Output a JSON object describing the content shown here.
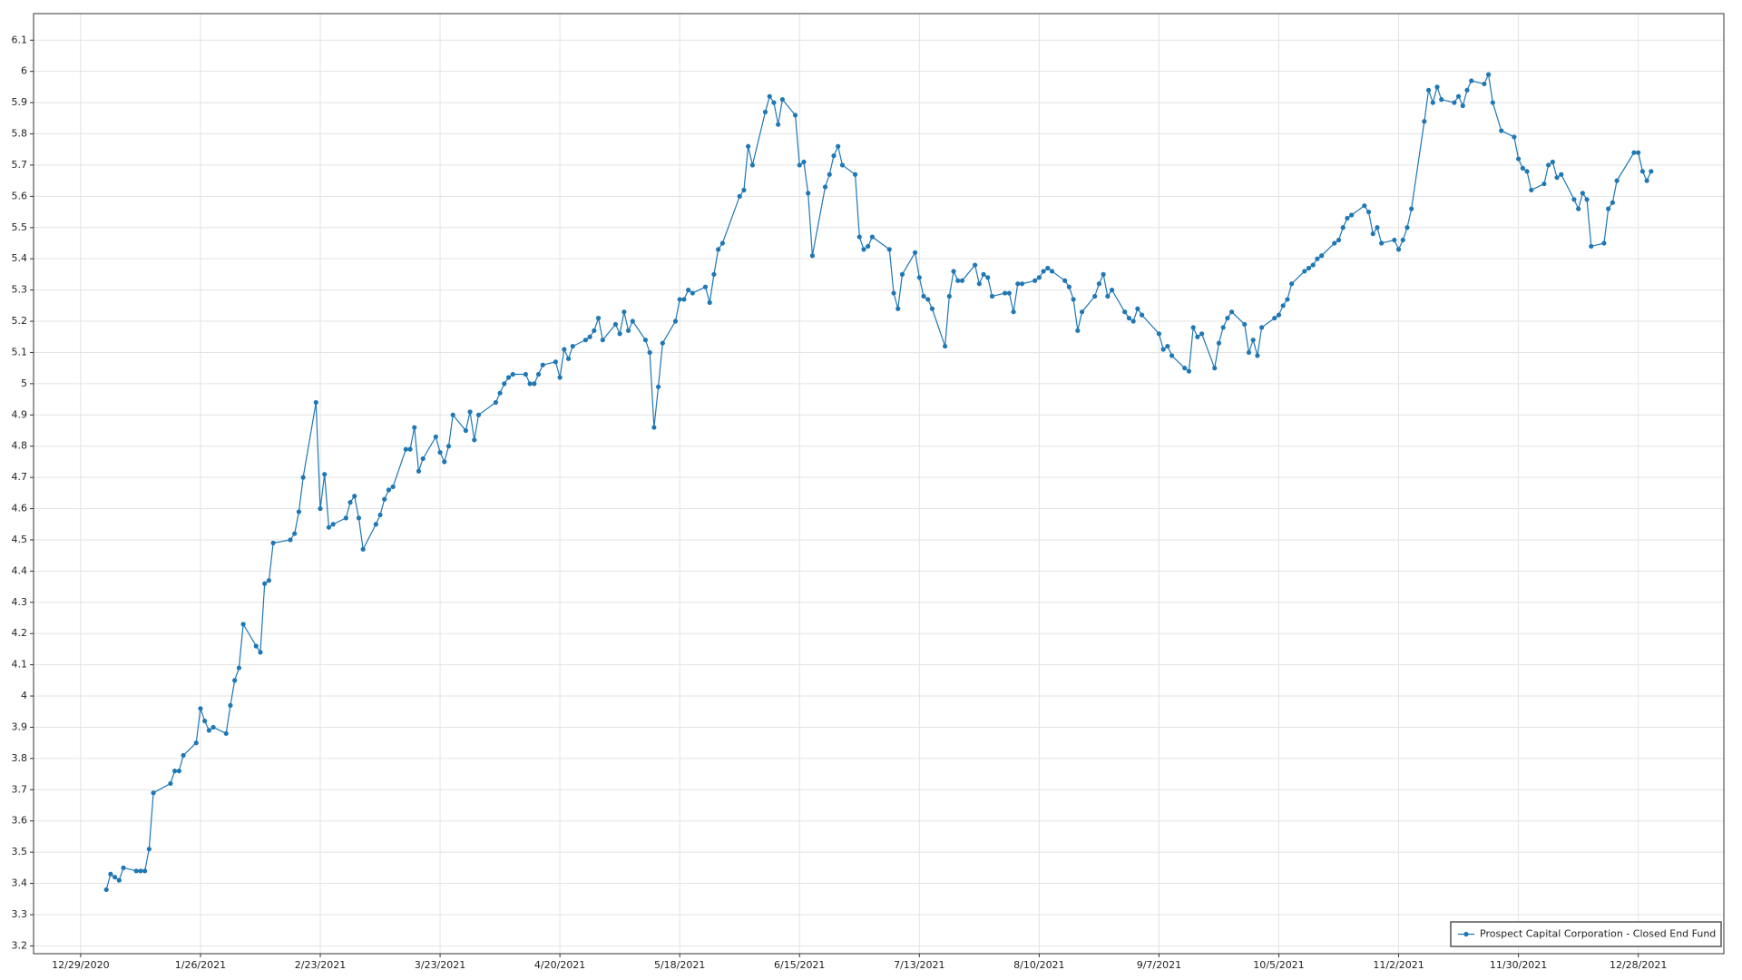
{
  "chart_data": {
    "type": "line",
    "x": [
      "1/4/2021",
      "1/5/2021",
      "1/6/2021",
      "1/7/2021",
      "1/8/2021",
      "1/11/2021",
      "1/12/2021",
      "1/13/2021",
      "1/14/2021",
      "1/15/2021",
      "1/19/2021",
      "1/20/2021",
      "1/21/2021",
      "1/22/2021",
      "1/25/2021",
      "1/26/2021",
      "1/27/2021",
      "1/28/2021",
      "1/29/2021",
      "2/1/2021",
      "2/2/2021",
      "2/3/2021",
      "2/4/2021",
      "2/5/2021",
      "2/8/2021",
      "2/9/2021",
      "2/10/2021",
      "2/11/2021",
      "2/12/2021",
      "2/16/2021",
      "2/17/2021",
      "2/18/2021",
      "2/19/2021",
      "2/22/2021",
      "2/23/2021",
      "2/24/2021",
      "2/25/2021",
      "2/26/2021",
      "3/1/2021",
      "3/2/2021",
      "3/3/2021",
      "3/4/2021",
      "3/5/2021",
      "3/8/2021",
      "3/9/2021",
      "3/10/2021",
      "3/11/2021",
      "3/12/2021",
      "3/15/2021",
      "3/16/2021",
      "3/17/2021",
      "3/18/2021",
      "3/19/2021",
      "3/22/2021",
      "3/23/2021",
      "3/24/2021",
      "3/25/2021",
      "3/26/2021",
      "3/29/2021",
      "3/30/2021",
      "3/31/2021",
      "4/1/2021",
      "4/5/2021",
      "4/6/2021",
      "4/7/2021",
      "4/8/2021",
      "4/9/2021",
      "4/12/2021",
      "4/13/2021",
      "4/14/2021",
      "4/15/2021",
      "4/16/2021",
      "4/19/2021",
      "4/20/2021",
      "4/21/2021",
      "4/22/2021",
      "4/23/2021",
      "4/26/2021",
      "4/27/2021",
      "4/28/2021",
      "4/29/2021",
      "4/30/2021",
      "5/3/2021",
      "5/4/2021",
      "5/5/2021",
      "5/6/2021",
      "5/7/2021",
      "5/10/2021",
      "5/11/2021",
      "5/12/2021",
      "5/13/2021",
      "5/14/2021",
      "5/17/2021",
      "5/18/2021",
      "5/19/2021",
      "5/20/2021",
      "5/21/2021",
      "5/24/2021",
      "5/25/2021",
      "5/26/2021",
      "5/27/2021",
      "5/28/2021",
      "6/1/2021",
      "6/2/2021",
      "6/3/2021",
      "6/4/2021",
      "6/7/2021",
      "6/8/2021",
      "6/9/2021",
      "6/10/2021",
      "6/11/2021",
      "6/14/2021",
      "6/15/2021",
      "6/16/2021",
      "6/17/2021",
      "6/18/2021",
      "6/21/2021",
      "6/22/2021",
      "6/23/2021",
      "6/24/2021",
      "6/25/2021",
      "6/28/2021",
      "6/29/2021",
      "6/30/2021",
      "7/1/2021",
      "7/2/2021",
      "7/6/2021",
      "7/7/2021",
      "7/8/2021",
      "7/9/2021",
      "7/12/2021",
      "7/13/2021",
      "7/14/2021",
      "7/15/2021",
      "7/16/2021",
      "7/19/2021",
      "7/20/2021",
      "7/21/2021",
      "7/22/2021",
      "7/23/2021",
      "7/26/2021",
      "7/27/2021",
      "7/28/2021",
      "7/29/2021",
      "7/30/2021",
      "8/2/2021",
      "8/3/2021",
      "8/4/2021",
      "8/5/2021",
      "8/6/2021",
      "8/9/2021",
      "8/10/2021",
      "8/11/2021",
      "8/12/2021",
      "8/13/2021",
      "8/16/2021",
      "8/17/2021",
      "8/18/2021",
      "8/19/2021",
      "8/20/2021",
      "8/23/2021",
      "8/24/2021",
      "8/25/2021",
      "8/26/2021",
      "8/27/2021",
      "8/30/2021",
      "8/31/2021",
      "9/1/2021",
      "9/2/2021",
      "9/3/2021",
      "9/7/2021",
      "9/8/2021",
      "9/9/2021",
      "9/10/2021",
      "9/13/2021",
      "9/14/2021",
      "9/15/2021",
      "9/16/2021",
      "9/17/2021",
      "9/20/2021",
      "9/21/2021",
      "9/22/2021",
      "9/23/2021",
      "9/24/2021",
      "9/27/2021",
      "9/28/2021",
      "9/29/2021",
      "9/30/2021",
      "10/1/2021",
      "10/4/2021",
      "10/5/2021",
      "10/6/2021",
      "10/7/2021",
      "10/8/2021",
      "10/11/2021",
      "10/12/2021",
      "10/13/2021",
      "10/14/2021",
      "10/15/2021",
      "10/18/2021",
      "10/19/2021",
      "10/20/2021",
      "10/21/2021",
      "10/22/2021",
      "10/25/2021",
      "10/26/2021",
      "10/27/2021",
      "10/28/2021",
      "10/29/2021",
      "11/1/2021",
      "11/2/2021",
      "11/3/2021",
      "11/4/2021",
      "11/5/2021",
      "11/8/2021",
      "11/9/2021",
      "11/10/2021",
      "11/11/2021",
      "11/12/2021",
      "11/15/2021",
      "11/16/2021",
      "11/17/2021",
      "11/18/2021",
      "11/19/2021",
      "11/22/2021",
      "11/23/2021",
      "11/24/2021",
      "11/26/2021",
      "11/29/2021",
      "11/30/2021",
      "12/1/2021",
      "12/2/2021",
      "12/3/2021",
      "12/6/2021",
      "12/7/2021",
      "12/8/2021",
      "12/9/2021",
      "12/10/2021",
      "12/13/2021",
      "12/14/2021",
      "12/15/2021",
      "12/16/2021",
      "12/17/2021",
      "12/20/2021",
      "12/21/2021",
      "12/22/2021",
      "12/23/2021",
      "12/27/2021",
      "12/28/2021",
      "12/29/2021",
      "12/30/2021",
      "12/31/2021"
    ],
    "series": [
      {
        "name": "Prospect Capital Corporation - Closed End Fund",
        "color": "#1f77b4",
        "values": [
          3.38,
          3.43,
          3.42,
          3.41,
          3.45,
          3.44,
          3.44,
          3.44,
          3.51,
          3.69,
          3.72,
          3.76,
          3.76,
          3.81,
          3.85,
          3.96,
          3.92,
          3.89,
          3.9,
          3.88,
          3.97,
          4.05,
          4.09,
          4.23,
          4.16,
          4.14,
          4.36,
          4.37,
          4.49,
          4.5,
          4.52,
          4.59,
          4.7,
          4.94,
          4.6,
          4.71,
          4.54,
          4.55,
          4.57,
          4.62,
          4.64,
          4.57,
          4.47,
          4.55,
          4.58,
          4.63,
          4.66,
          4.67,
          4.79,
          4.79,
          4.86,
          4.72,
          4.76,
          4.83,
          4.78,
          4.75,
          4.8,
          4.9,
          4.85,
          4.91,
          4.82,
          4.9,
          4.94,
          4.97,
          5.0,
          5.02,
          5.03,
          5.03,
          5.0,
          5.0,
          5.03,
          5.06,
          5.07,
          5.02,
          5.11,
          5.08,
          5.12,
          5.14,
          5.15,
          5.17,
          5.21,
          5.14,
          5.19,
          5.16,
          5.23,
          5.17,
          5.2,
          5.14,
          5.1,
          4.86,
          4.99,
          5.13,
          5.2,
          5.27,
          5.27,
          5.3,
          5.29,
          5.31,
          5.26,
          5.35,
          5.43,
          5.45,
          5.6,
          5.62,
          5.76,
          5.7,
          5.87,
          5.92,
          5.9,
          5.83,
          5.91,
          5.86,
          5.7,
          5.71,
          5.61,
          5.41,
          5.63,
          5.67,
          5.73,
          5.76,
          5.7,
          5.67,
          5.47,
          5.43,
          5.44,
          5.47,
          5.43,
          5.29,
          5.24,
          5.35,
          5.42,
          5.34,
          5.28,
          5.27,
          5.24,
          5.12,
          5.28,
          5.36,
          5.33,
          5.33,
          5.38,
          5.32,
          5.35,
          5.34,
          5.28,
          5.29,
          5.29,
          5.23,
          5.32,
          5.32,
          5.33,
          5.34,
          5.36,
          5.37,
          5.36,
          5.33,
          5.31,
          5.27,
          5.17,
          5.23,
          5.28,
          5.32,
          5.35,
          5.28,
          5.3,
          5.23,
          5.21,
          5.2,
          5.24,
          5.22,
          5.16,
          5.11,
          5.12,
          5.09,
          5.05,
          5.04,
          5.18,
          5.15,
          5.16,
          5.05,
          5.13,
          5.18,
          5.21,
          5.23,
          5.19,
          5.1,
          5.14,
          5.09,
          5.18,
          5.21,
          5.22,
          5.25,
          5.27,
          5.32,
          5.36,
          5.37,
          5.38,
          5.4,
          5.41,
          5.45,
          5.46,
          5.5,
          5.53,
          5.54,
          5.57,
          5.55,
          5.48,
          5.5,
          5.45,
          5.46,
          5.43,
          5.46,
          5.5,
          5.56,
          5.84,
          5.94,
          5.9,
          5.95,
          5.91,
          5.9,
          5.92,
          5.89,
          5.94,
          5.97,
          5.96,
          5.99,
          5.9,
          5.81,
          5.79,
          5.72,
          5.69,
          5.68,
          5.62,
          5.64,
          5.7,
          5.71,
          5.66,
          5.67,
          5.59,
          5.56,
          5.61,
          5.59,
          5.44,
          5.45,
          5.56,
          5.58,
          5.65,
          5.74,
          5.74,
          5.68,
          5.65,
          5.68
        ]
      }
    ],
    "xlim": [
      "12/18/2020",
      "1/17/2022"
    ],
    "xticks": [
      "12/29/2020",
      "1/26/2021",
      "2/23/2021",
      "3/23/2021",
      "4/20/2021",
      "5/18/2021",
      "6/15/2021",
      "7/13/2021",
      "8/10/2021",
      "9/7/2021",
      "10/5/2021",
      "11/2/2021",
      "11/30/2021",
      "12/28/2021"
    ],
    "ylim": [
      3.175,
      6.185
    ],
    "yticks": [
      3.2,
      3.3,
      3.4,
      3.5,
      3.6,
      3.7,
      3.8,
      3.9,
      4,
      4.1,
      4.2,
      4.3,
      4.4,
      4.5,
      4.6,
      4.7,
      4.8,
      4.9,
      5,
      5.1,
      5.2,
      5.3,
      5.4,
      5.5,
      5.6,
      5.7,
      5.8,
      5.9,
      6,
      6.1
    ],
    "grid": true,
    "legend": "lower right"
  }
}
